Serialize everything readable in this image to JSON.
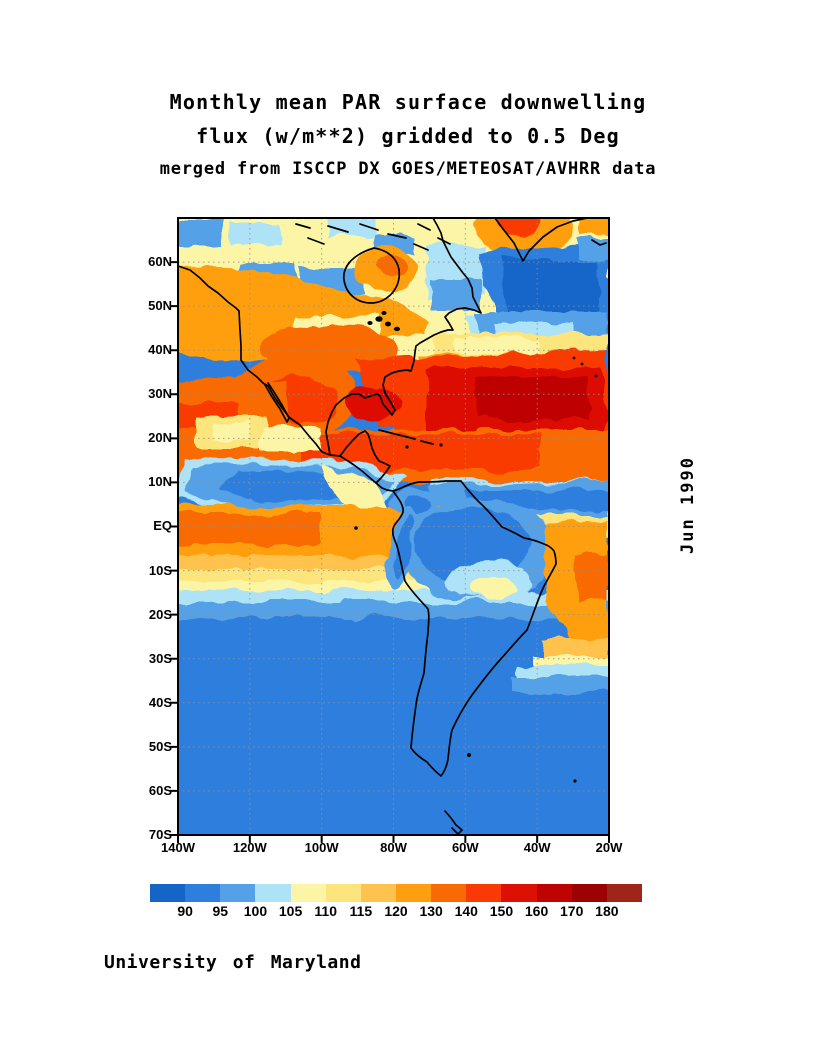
{
  "titles": {
    "line1": "Monthly mean PAR surface downwelling",
    "line2": "flux (w/m**2) gridded to 0.5 Deg",
    "line3": "merged from ISCCP DX GOES/METEOSAT/AVHRR data"
  },
  "credit": "University of Maryland",
  "chart_data": {
    "type": "heatmap",
    "title": "Monthly mean PAR surface downwelling flux (w/m**2) gridded to 0.5 Deg",
    "subtitle": "merged from ISCCP DX GOES/METEOSAT/AVHRR data",
    "date": "Jun 1990",
    "units": "w/m**2",
    "grid_resolution_deg": 0.5,
    "x_axis": {
      "ticks": [
        "140W",
        "120W",
        "100W",
        "80W",
        "60W",
        "40W",
        "20W"
      ],
      "range_deg_lon": [
        -140,
        -20
      ]
    },
    "y_axis": {
      "ticks": [
        "60N",
        "50N",
        "40N",
        "30N",
        "20N",
        "10N",
        "EQ",
        "10S",
        "20S",
        "30S",
        "40S",
        "50S",
        "60S",
        "70S"
      ],
      "range_deg_lat": [
        70,
        -70
      ]
    },
    "colorbar": {
      "boundary_labels": [
        "90",
        "95",
        "100",
        "105",
        "110",
        "115",
        "120",
        "130",
        "140",
        "150",
        "160",
        "170",
        "180"
      ],
      "colors": [
        "#1565C8",
        "#2E7FDD",
        "#55A1E8",
        "#AEE3F7",
        "#FCF5A5",
        "#FDE57D",
        "#FEC24E",
        "#FF9F0F",
        "#F96A05",
        "#F93A04",
        "#DC1104",
        "#BE0303",
        "#9D0202",
        "#9F2518"
      ]
    },
    "pattern_summary": {
      "high_flux_regions": "Northern-hemisphere subtropics: SW United States / Mexico and subtropical North Atlantic near 20N-35N reach 150-180 w/m**2",
      "low_flux_regions": "Southern ocean south of ~15S, North Atlantic 45N-60N, ITCZ cloud bands near 5N-10N and Amazon basin near 90 w/m**2 or less"
    }
  }
}
